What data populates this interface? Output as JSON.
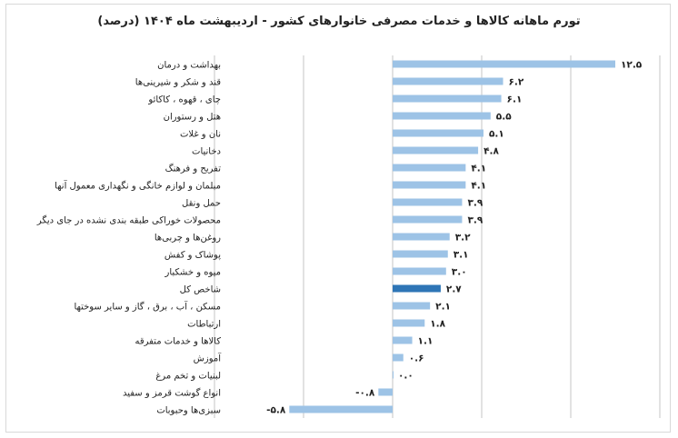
{
  "chart_data": {
    "type": "bar",
    "orientation": "horizontal",
    "title": "تورم ماهانه کالاها و خدمات مصرفی خانوارهای کشور - اردیبهشت ماه ۱۴۰۴ (درصد)",
    "xlim": [
      -10,
      15
    ],
    "grid": true,
    "legend": "none",
    "colors": {
      "default": "#9DC3E6",
      "highlight": "#2E75B6"
    },
    "categories": [
      "بهداشت و درمان",
      "قند و شکر و شیرینی‌ها",
      "چای ، قهوه ، کاکائو",
      "هتل و رستوران",
      "نان و غلات",
      "دخانیات",
      "تفریح و فرهنگ",
      "مبلمان و لوازم خانگی و نگهداری معمول آنها",
      "حمل ونقل",
      "محصولات خوراکی طبقه بندی نشده در جای دیگر",
      "روغن‌ها و چربی‌ها",
      "پوشاک و کفش",
      "میوه و خشکبار",
      "شاخص کل",
      "مسکن ، آب ، برق ، گاز و سایر سوختها",
      "ارتباطات",
      "کالاها و خدمات متفرقه",
      "آموزش",
      "لبنیات و تخم مرغ",
      "انواع گوشت قرمز و سفید",
      "سبزی‌ها وحبوبات"
    ],
    "values": [
      12.5,
      6.2,
      6.1,
      5.5,
      5.1,
      4.8,
      4.1,
      4.1,
      3.9,
      3.9,
      3.2,
      3.1,
      3.0,
      2.7,
      2.1,
      1.8,
      1.1,
      0.6,
      0.0,
      -0.8,
      -5.8
    ],
    "data_labels": [
      "۱۲.۵",
      "۶.۲",
      "۶.۱",
      "۵.۵",
      "۵.۱",
      "۴.۸",
      "۴.۱",
      "۴.۱",
      "۳.۹",
      "۳.۹",
      "۳.۲",
      "۳.۱",
      "۳.۰",
      "۲.۷",
      "۲.۱",
      "۱.۸",
      "۱.۱",
      "۰.۶",
      "۰.۰",
      "-۰.۸",
      "-۵.۸"
    ],
    "highlight_category": "شاخص کل"
  }
}
